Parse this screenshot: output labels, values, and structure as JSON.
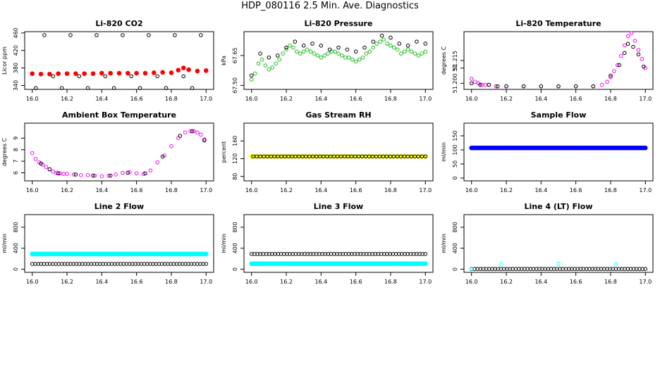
{
  "figure": {
    "title": "HDP_080116  2.5 Min. Ave. Diagnostics"
  },
  "colors": {
    "black": "#000000",
    "red": "#ff0000",
    "green": "#22bb22",
    "magenta": "#ff00ff",
    "yellow": "#ffff00",
    "blue": "#0000ff",
    "cyan": "#00ffff"
  },
  "chart_data": [
    {
      "id": "co2",
      "type": "scatter",
      "title": "Li-820 CO2",
      "ylabel": "Licor ppm",
      "xlim": [
        16.0,
        17.0
      ],
      "ylim": [
        331,
        463
      ],
      "xticks": [
        16.0,
        16.2,
        16.4,
        16.6,
        16.8,
        17.0
      ],
      "xtick_labels": [
        "16.0",
        "16.2",
        "16.4",
        "16.6",
        "16.8",
        "17.0"
      ],
      "yticks": [
        340,
        380,
        420,
        460
      ],
      "ytick_labels": [
        "340",
        "380",
        "420",
        "460"
      ],
      "series": [
        {
          "name": "Li-820 CO2 (red)",
          "color": "red",
          "marker": "dot",
          "x": [
            16.0,
            16.05,
            16.1,
            16.15,
            16.2,
            16.25,
            16.3,
            16.35,
            16.4,
            16.45,
            16.5,
            16.55,
            16.6,
            16.65,
            16.7,
            16.75,
            16.8,
            16.84,
            16.87,
            16.9,
            16.95,
            17.0
          ],
          "y": [
            367,
            366,
            366,
            367,
            367,
            367,
            367,
            367,
            368,
            368,
            368,
            368,
            368,
            368,
            369,
            370,
            369,
            375,
            380,
            376,
            373,
            374
          ]
        },
        {
          "name": "diagnostic scatter (black)",
          "color": "black",
          "marker": "circle",
          "x": [
            16.02,
            16.07,
            16.12,
            16.17,
            16.22,
            16.27,
            16.32,
            16.37,
            16.42,
            16.47,
            16.52,
            16.57,
            16.62,
            16.67,
            16.72,
            16.77,
            16.82,
            16.87,
            16.92,
            16.97
          ],
          "y": [
            334,
            455,
            361,
            334,
            455,
            361,
            334,
            455,
            361,
            334,
            455,
            361,
            334,
            455,
            361,
            334,
            455,
            361,
            334,
            455
          ]
        }
      ]
    },
    {
      "id": "pressure",
      "type": "scatter",
      "title": "Li-820 Pressure",
      "ylabel": "kPa",
      "xlim": [
        16.0,
        17.0
      ],
      "ylim": [
        67.48,
        67.77
      ],
      "xticks": [
        16.0,
        16.2,
        16.4,
        16.6,
        16.8,
        17.0
      ],
      "xtick_labels": [
        "16.0",
        "16.2",
        "16.4",
        "16.6",
        "16.8",
        "17.0"
      ],
      "yticks": [
        67.5,
        67.65
      ],
      "ytick_labels": [
        "67.50",
        "67.65"
      ],
      "series": [
        {
          "name": "pressure (green)",
          "color": "green",
          "marker": "circle",
          "x": [
            16.0,
            16.02,
            16.04,
            16.06,
            16.08,
            16.1,
            16.12,
            16.14,
            16.16,
            16.18,
            16.2,
            16.22,
            16.24,
            16.26,
            16.28,
            16.3,
            16.32,
            16.34,
            16.36,
            16.38,
            16.4,
            16.42,
            16.44,
            16.46,
            16.48,
            16.5,
            16.52,
            16.54,
            16.56,
            16.58,
            16.6,
            16.62,
            16.64,
            16.66,
            16.68,
            16.7,
            16.72,
            16.74,
            16.76,
            16.78,
            16.8,
            16.82,
            16.84,
            16.86,
            16.88,
            16.9,
            16.92,
            16.94,
            16.96,
            16.98,
            17.0
          ],
          "y": [
            67.53,
            67.56,
            67.61,
            67.63,
            67.6,
            67.58,
            67.59,
            67.61,
            67.63,
            67.66,
            67.68,
            67.7,
            67.69,
            67.67,
            67.66,
            67.67,
            67.68,
            67.67,
            67.66,
            67.65,
            67.64,
            67.65,
            67.66,
            67.67,
            67.67,
            67.66,
            67.65,
            67.64,
            67.64,
            67.63,
            67.62,
            67.63,
            67.64,
            67.66,
            67.67,
            67.69,
            67.71,
            67.72,
            67.73,
            67.71,
            67.7,
            67.69,
            67.68,
            67.66,
            67.67,
            67.68,
            67.67,
            67.66,
            67.65,
            67.66,
            67.67
          ]
        },
        {
          "name": "pressure (black)",
          "color": "black",
          "marker": "circle",
          "x": [
            16.0,
            16.05,
            16.1,
            16.15,
            16.2,
            16.25,
            16.3,
            16.35,
            16.4,
            16.45,
            16.5,
            16.55,
            16.6,
            16.65,
            16.7,
            16.75,
            16.8,
            16.85,
            16.9,
            16.95,
            17.0
          ],
          "y": [
            67.55,
            67.66,
            67.64,
            67.65,
            67.69,
            67.72,
            67.7,
            67.71,
            67.7,
            67.68,
            67.69,
            67.68,
            67.67,
            67.69,
            67.72,
            67.75,
            67.74,
            67.71,
            67.7,
            67.72,
            67.71
          ]
        }
      ]
    },
    {
      "id": "licor_temp",
      "type": "scatter",
      "title": "Li-820 Temperature",
      "ylabel": "degrees C",
      "xlim": [
        16.0,
        17.0
      ],
      "ylim": [
        51.196,
        51.234
      ],
      "xticks": [
        16.0,
        16.2,
        16.4,
        16.6,
        16.8,
        17.0
      ],
      "xtick_labels": [
        "16.0",
        "16.2",
        "16.4",
        "16.6",
        "16.8",
        "17.0"
      ],
      "yticks": [
        51.2,
        51.21,
        51.215
      ],
      "ytick_labels": [
        "51.200",
        "51",
        "51.215"
      ],
      "series": [
        {
          "name": "temperature (magenta)",
          "color": "magenta",
          "marker": "circle",
          "x": [
            16.0,
            16.02,
            16.04,
            16.06,
            16.08,
            16.1,
            16.14,
            16.2,
            16.3,
            16.4,
            16.5,
            16.6,
            16.7,
            16.75,
            16.78,
            16.8,
            16.82,
            16.84,
            16.86,
            16.88,
            16.9,
            16.92,
            16.94,
            16.96,
            16.98,
            17.0
          ],
          "y": [
            51.203,
            51.201,
            51.2,
            51.199,
            51.199,
            51.199,
            51.198,
            51.198,
            51.198,
            51.198,
            51.198,
            51.198,
            51.198,
            51.199,
            51.201,
            51.204,
            51.208,
            51.212,
            51.218,
            51.225,
            51.231,
            51.233,
            51.228,
            51.222,
            51.216,
            51.21
          ]
        },
        {
          "name": "temperature (black)",
          "color": "black",
          "marker": "circle",
          "x": [
            16.0,
            16.05,
            16.1,
            16.15,
            16.2,
            16.3,
            16.4,
            16.5,
            16.6,
            16.7,
            16.8,
            16.85,
            16.88,
            16.9,
            16.93,
            16.96,
            16.99
          ],
          "y": [
            51.2,
            51.199,
            51.199,
            51.198,
            51.198,
            51.198,
            51.198,
            51.198,
            51.198,
            51.198,
            51.205,
            51.212,
            51.22,
            51.226,
            51.224,
            51.219,
            51.211
          ]
        }
      ]
    },
    {
      "id": "ambient_box",
      "type": "scatter",
      "title": "Ambient Box Temperature",
      "ylabel": "degrees C",
      "xlim": [
        16.0,
        17.0
      ],
      "ylim": [
        5.3,
        10.3
      ],
      "xticks": [
        16.0,
        16.2,
        16.4,
        16.6,
        16.8,
        17.0
      ],
      "xtick_labels": [
        "16.0",
        "16.2",
        "16.4",
        "16.6",
        "16.8",
        "17.0"
      ],
      "yticks": [
        6,
        7,
        8,
        9
      ],
      "ytick_labels": [
        "6",
        "7",
        "8",
        "9"
      ],
      "series": [
        {
          "name": "ambient (magenta)",
          "color": "magenta",
          "marker": "circle",
          "x": [
            16.0,
            16.02,
            16.04,
            16.06,
            16.08,
            16.1,
            16.12,
            16.14,
            16.16,
            16.18,
            16.2,
            16.24,
            16.28,
            16.32,
            16.36,
            16.4,
            16.44,
            16.48,
            16.52,
            16.56,
            16.6,
            16.64,
            16.68,
            16.72,
            16.76,
            16.8,
            16.84,
            16.88,
            16.91,
            16.93,
            16.95,
            16.97,
            16.99
          ],
          "y": [
            7.7,
            7.2,
            6.9,
            6.7,
            6.5,
            6.3,
            6.1,
            6.0,
            5.95,
            5.9,
            5.9,
            5.85,
            5.8,
            5.8,
            5.75,
            5.7,
            5.75,
            5.85,
            6.0,
            6.05,
            5.95,
            5.9,
            6.2,
            6.9,
            7.5,
            8.3,
            9.0,
            9.5,
            9.6,
            9.6,
            9.5,
            9.3,
            8.9
          ]
        },
        {
          "name": "ambient (black)",
          "color": "black",
          "marker": "circle",
          "x": [
            16.05,
            16.1,
            16.15,
            16.25,
            16.35,
            16.45,
            16.55,
            16.65,
            16.75,
            16.85,
            16.92,
            16.99
          ],
          "y": [
            6.8,
            6.3,
            5.95,
            5.85,
            5.75,
            5.75,
            6.0,
            5.95,
            7.4,
            9.2,
            9.6,
            8.8
          ]
        }
      ]
    },
    {
      "id": "gas_rh",
      "type": "scatter",
      "title": "Gas Stream RH",
      "ylabel": "percent",
      "xlim": [
        16.0,
        17.0
      ],
      "ylim": [
        70,
        200
      ],
      "xticks": [
        16.0,
        16.2,
        16.4,
        16.6,
        16.8,
        17.0
      ],
      "xtick_labels": [
        "16.0",
        "16.2",
        "16.4",
        "16.6",
        "16.8",
        "17.0"
      ],
      "yticks": [
        80,
        120,
        160
      ],
      "ytick_labels": [
        "80",
        "120",
        "160"
      ],
      "series": [
        {
          "name": "RH (yellow)",
          "color": "yellow",
          "marker": "dot",
          "x_start": 16.0,
          "x_end": 17.0,
          "n": 50,
          "y_const": 125
        },
        {
          "name": "RH (black)",
          "color": "black",
          "marker": "circle",
          "x_start": 16.01,
          "x_end": 17.0,
          "n": 50,
          "y_const": 125
        }
      ]
    },
    {
      "id": "sample_flow",
      "type": "scatter",
      "title": "Sample Flow",
      "ylabel": "ml/min",
      "xlim": [
        16.0,
        17.0
      ],
      "ylim": [
        -10,
        195
      ],
      "xticks": [
        16.0,
        16.2,
        16.4,
        16.6,
        16.8,
        17.0
      ],
      "xtick_labels": [
        "16.0",
        "16.2",
        "16.4",
        "16.6",
        "16.8",
        "17.0"
      ],
      "yticks": [
        0,
        50,
        100,
        150
      ],
      "ytick_labels": [
        "0",
        "50",
        "100",
        "150"
      ],
      "series": [
        {
          "name": "sample flow (black)",
          "color": "black",
          "marker": "circle",
          "x_start": 16.0,
          "x_end": 17.0,
          "n": 90,
          "y_const": 108
        },
        {
          "name": "sample flow (blue)",
          "color": "blue",
          "marker": "dot",
          "x_start": 16.0,
          "x_end": 17.0,
          "n": 90,
          "y_const": 107
        }
      ]
    },
    {
      "id": "line2",
      "type": "scatter",
      "title": "Line 2 Flow",
      "ylabel": "ml/min",
      "xlim": [
        16.0,
        17.0
      ],
      "ylim": [
        -60,
        1040
      ],
      "xticks": [
        16.0,
        16.2,
        16.4,
        16.6,
        16.8,
        17.0
      ],
      "xtick_labels": [
        "16.0",
        "16.2",
        "16.4",
        "16.6",
        "16.8",
        "17.0"
      ],
      "yticks": [
        0,
        400,
        800
      ],
      "ytick_labels": [
        "0",
        "400",
        "800"
      ],
      "series": [
        {
          "name": "line 2 (cyan)",
          "color": "cyan",
          "marker": "dot",
          "x_start": 16.0,
          "x_end": 17.0,
          "n": 90,
          "y_const": 290
        },
        {
          "name": "line 2 (black)",
          "color": "black",
          "marker": "circle",
          "x_start": 16.0,
          "x_end": 17.0,
          "n": 60,
          "y_const": 100
        }
      ]
    },
    {
      "id": "line3",
      "type": "scatter",
      "title": "Line 3 Flow",
      "ylabel": "ml/min",
      "xlim": [
        16.0,
        17.0
      ],
      "ylim": [
        -60,
        1040
      ],
      "xticks": [
        16.0,
        16.2,
        16.4,
        16.6,
        16.8,
        17.0
      ],
      "xtick_labels": [
        "16.0",
        "16.2",
        "16.4",
        "16.6",
        "16.8",
        "17.0"
      ],
      "yticks": [
        0,
        400,
        800
      ],
      "ytick_labels": [
        "0",
        "400",
        "800"
      ],
      "series": [
        {
          "name": "line 3 (cyan)",
          "color": "cyan",
          "marker": "dot",
          "x_start": 16.0,
          "x_end": 17.0,
          "n": 90,
          "y_const": 105
        },
        {
          "name": "line 3 (black)",
          "color": "black",
          "marker": "circle",
          "x_start": 16.0,
          "x_end": 17.0,
          "n": 60,
          "y_const": 290
        }
      ]
    },
    {
      "id": "line4",
      "type": "scatter",
      "title": "Line 4 (LT) Flow",
      "ylabel": "ml/min",
      "xlim": [
        16.0,
        17.0
      ],
      "ylim": [
        -60,
        1040
      ],
      "xticks": [
        16.0,
        16.2,
        16.4,
        16.6,
        16.8,
        17.0
      ],
      "xtick_labels": [
        "16.0",
        "16.2",
        "16.4",
        "16.6",
        "16.8",
        "17.0"
      ],
      "yticks": [
        0,
        400,
        800
      ],
      "ytick_labels": [
        "0",
        "400",
        "800"
      ],
      "series": [
        {
          "name": "line 4 (black)",
          "color": "black",
          "marker": "circle",
          "x_start": 16.0,
          "x_end": 17.0,
          "n": 60,
          "y_const": 5
        },
        {
          "name": "line 4 (cyan)",
          "color": "cyan",
          "marker": "circle",
          "x": [
            16.0,
            16.17,
            16.5,
            16.83
          ],
          "y": [
            10,
            100,
            100,
            100
          ]
        }
      ]
    }
  ]
}
